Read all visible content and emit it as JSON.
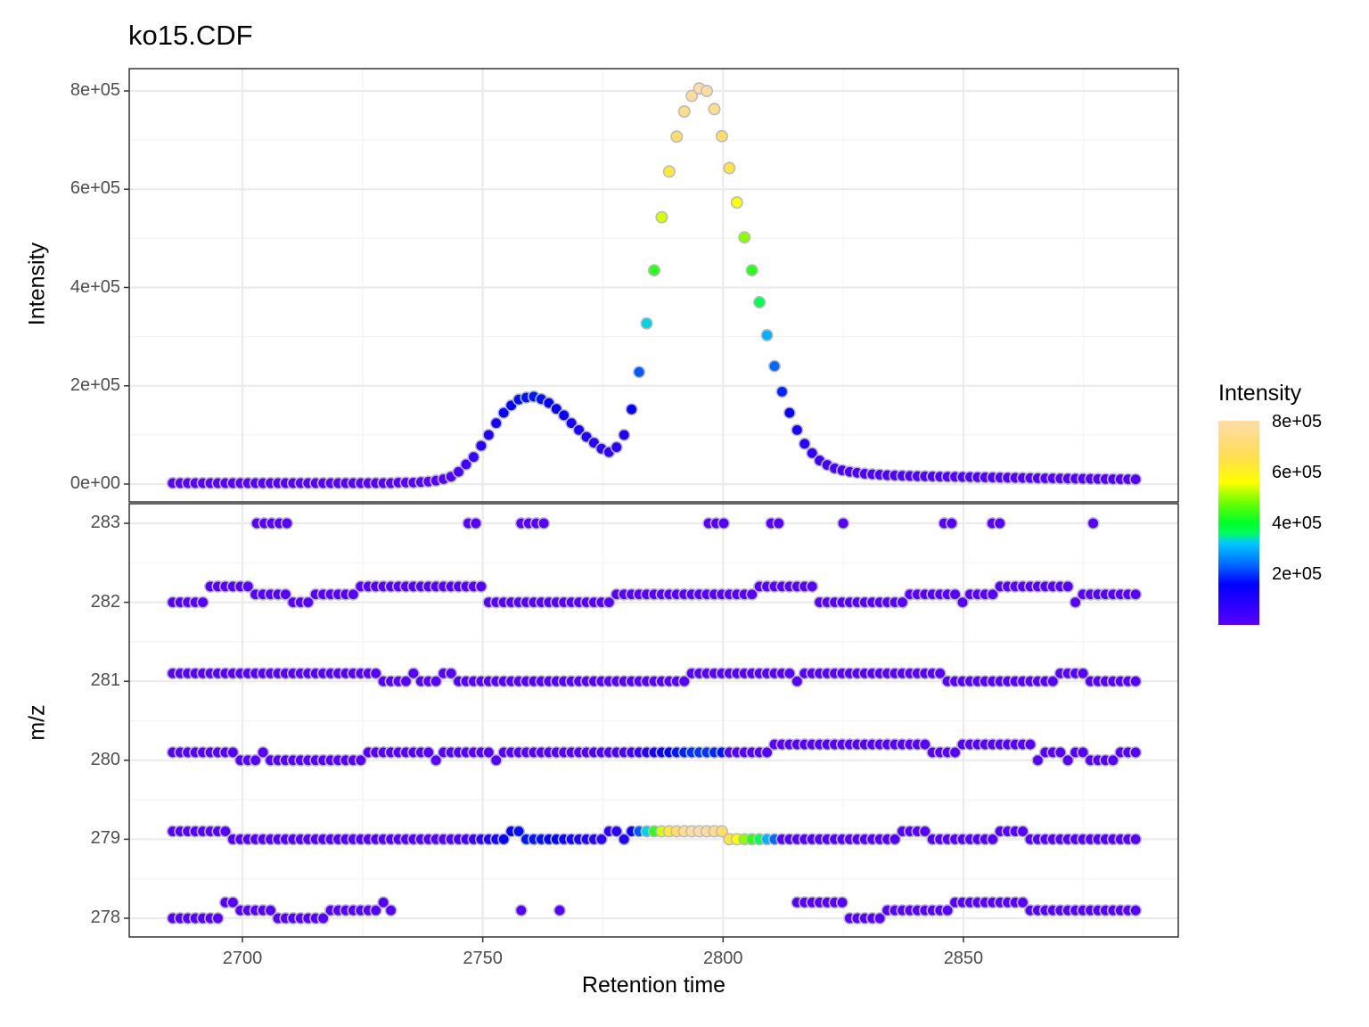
{
  "chart_data": [
    {
      "type": "scatter",
      "panel": "top",
      "title": "ko15.CDF",
      "xlabel": "Retention time",
      "ylabel": "Intensity",
      "xlim": [
        2677,
        2895
      ],
      "ylim": [
        -38000,
        845000
      ],
      "x_ticks": [
        2700,
        2750,
        2800,
        2850
      ],
      "y_ticks": [
        0,
        200000,
        400000,
        600000,
        800000
      ],
      "y_tick_labels": [
        "0e+00",
        "2e+05",
        "4e+05",
        "6e+05",
        "8e+05"
      ],
      "grid": true,
      "rt_start": 2685.5,
      "rt_step": 1.565,
      "intensity": [
        2000,
        2000,
        2000,
        2000,
        2000,
        2000,
        2000,
        2000,
        2000,
        2000,
        2000,
        2000,
        2000,
        2000,
        2000,
        2000,
        2000,
        2000,
        2000,
        2000,
        2000,
        2000,
        2000,
        2000,
        2000,
        2000,
        2000,
        2000,
        2000,
        2000,
        3000,
        3000,
        3000,
        4000,
        5000,
        7000,
        10000,
        15000,
        25000,
        40000,
        55000,
        78000,
        100000,
        124000,
        145000,
        160000,
        172000,
        176000,
        178000,
        173000,
        165000,
        153000,
        140000,
        124000,
        110000,
        96000,
        84000,
        72000,
        65000,
        75000,
        100000,
        152000,
        228000,
        327000,
        435000,
        543000,
        636000,
        707000,
        758000,
        790000,
        805000,
        800000,
        763000,
        708000,
        643000,
        573000,
        502000,
        435000,
        370000,
        303000,
        240000,
        188000,
        145000,
        110000,
        82000,
        63000,
        48000,
        39000,
        32000,
        28000,
        25000,
        23000,
        21000,
        20000,
        19000,
        18000,
        17500,
        17000,
        16500,
        16000,
        15800,
        15500,
        15200,
        15000,
        14800,
        14500,
        14300,
        14000,
        13800,
        13500,
        13300,
        13000,
        12800,
        12500,
        12300,
        12000,
        11800,
        11600,
        11400,
        11200,
        11000,
        10800,
        10600,
        10400,
        10200,
        10000,
        9900,
        9800,
        9700
      ]
    },
    {
      "type": "scatter",
      "panel": "bottom",
      "xlabel": "Retention time",
      "ylabel": "m/z",
      "xlim": [
        2677,
        2895
      ],
      "ylim": [
        277.75,
        283.25
      ],
      "x_ticks": [
        2700,
        2750,
        2800,
        2850
      ],
      "y_ticks": [
        278,
        279,
        280,
        281,
        282,
        283
      ],
      "grid": true,
      "note": "Each retention-time scan contributes points at m/z values near 278–283; the peak intensity is concentrated on the m/z 279 trace between RT ~2745–2810 (secondary on 280).",
      "traces": {
        "283": {
          "segments": [
            [
              2703,
              2710
            ],
            [
              2747,
              2749
            ],
            [
              2758,
              2763
            ],
            [
              2797,
              2801
            ],
            [
              2810,
              2813
            ],
            [
              2825,
              2825
            ],
            [
              2846,
              2848
            ],
            [
              2856,
              2858
            ],
            [
              2877,
              2877
            ]
          ]
        },
        "282": {
          "base": 282.0,
          "variation": "282.0–282.3, steps of 0.1"
        },
        "281": {
          "base": 281.0,
          "variation": "281.0–281.2, steps of 0.1"
        },
        "280": {
          "base": 280.0,
          "variation": "279.9–280.2, steps of 0.1"
        },
        "279": {
          "base": 279.0,
          "variation": "279.0–279.1; carries main peak"
        },
        "278": {
          "base": 278.0,
          "variation": "278.0–278.3; gap RT ~2732–2815 except isolated points"
        }
      }
    }
  ],
  "legend": {
    "title": "Intensity",
    "labels": [
      "8e+05",
      "6e+05",
      "4e+05",
      "2e+05"
    ],
    "colormap": [
      "#5a00ff",
      "#0000ff",
      "#0060ff",
      "#00c8ff",
      "#00ff40",
      "#70ff00",
      "#ffff00",
      "#ffd84a",
      "#ffdcaa"
    ]
  },
  "colors": {
    "panel_border": "#333333",
    "grid_major": "#ebebeb",
    "grid_minor": "#f4f4f4",
    "point_outline": "#bbbbbb",
    "tick_text": "#4d4d4d"
  }
}
